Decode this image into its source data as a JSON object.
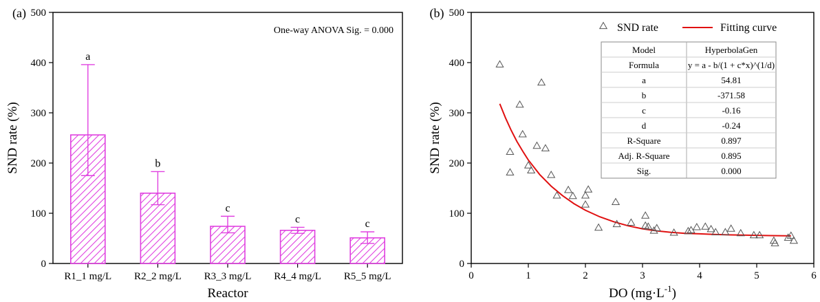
{
  "chart_data": [
    {
      "type": "bar",
      "panel_label": "(a)",
      "categories": [
        "R1_1 mg/L",
        "R2_2 mg/L",
        "R3_3 mg/L",
        "R4_4 mg/L",
        "R5_5 mg/L"
      ],
      "values": [
        256,
        140,
        74,
        66,
        51
      ],
      "error_low": [
        175,
        117,
        61,
        60,
        40
      ],
      "error_high": [
        396,
        183,
        94,
        72,
        63
      ],
      "letters": [
        "a",
        "b",
        "c",
        "c",
        "c"
      ],
      "xlabel": "Reactor",
      "ylabel": "SND rate (%)",
      "ylim": [
        0,
        500
      ],
      "yticks": [
        0,
        100,
        200,
        300,
        400,
        500
      ],
      "annotation": "One-way ANOVA Sig. = 0.000",
      "bar_color": "#e040e0",
      "hatch": "diagonal",
      "grid": false
    },
    {
      "type": "scatter",
      "panel_label": "(b)",
      "xlabel": "DO (mg·L",
      "xlabel_sup": "-1",
      "xlabel_tail": ")",
      "ylabel": "SND rate (%)",
      "xlim": [
        0,
        6
      ],
      "ylim": [
        0,
        500
      ],
      "xticks": [
        0,
        1,
        2,
        3,
        4,
        5,
        6
      ],
      "yticks": [
        0,
        100,
        200,
        300,
        400,
        500
      ],
      "grid": false,
      "legend_position": "top",
      "series": [
        {
          "name": "SND rate",
          "marker": "triangle-open",
          "color": "#555555",
          "points": [
            [
              0.5,
              396
            ],
            [
              0.68,
              222
            ],
            [
              0.68,
              181
            ],
            [
              0.85,
              316
            ],
            [
              0.9,
              257
            ],
            [
              1.23,
              360
            ],
            [
              1.0,
              195
            ],
            [
              1.05,
              185
            ],
            [
              1.15,
              234
            ],
            [
              1.3,
              229
            ],
            [
              1.4,
              176
            ],
            [
              1.5,
              135
            ],
            [
              1.7,
              146
            ],
            [
              1.78,
              134
            ],
            [
              2.0,
              135
            ],
            [
              2.0,
              117
            ],
            [
              2.05,
              147
            ],
            [
              2.23,
              71
            ],
            [
              2.53,
              122
            ],
            [
              2.55,
              78
            ],
            [
              2.8,
              81
            ],
            [
              3.05,
              95
            ],
            [
              3.05,
              75
            ],
            [
              3.1,
              73
            ],
            [
              3.2,
              65
            ],
            [
              3.25,
              70
            ],
            [
              3.55,
              61
            ],
            [
              3.8,
              64
            ],
            [
              3.85,
              66
            ],
            [
              3.95,
              72
            ],
            [
              4.1,
              73
            ],
            [
              4.2,
              68
            ],
            [
              4.28,
              62
            ],
            [
              4.45,
              62
            ],
            [
              4.55,
              69
            ],
            [
              4.72,
              60
            ],
            [
              4.95,
              56
            ],
            [
              5.05,
              56
            ],
            [
              5.3,
              45
            ],
            [
              5.32,
              40
            ],
            [
              5.55,
              51
            ],
            [
              5.6,
              55
            ],
            [
              5.65,
              45
            ]
          ]
        },
        {
          "name": "Fitting curve",
          "line": true,
          "color": "#e01010",
          "x": [
            0.5,
            0.6,
            0.7,
            0.8,
            0.9,
            1.0,
            1.2,
            1.4,
            1.6,
            1.8,
            2.0,
            2.25,
            2.5,
            2.75,
            3.0,
            3.25,
            3.5,
            3.75,
            4.0,
            4.25,
            4.5,
            4.75,
            5.0,
            5.25,
            5.5,
            5.6
          ],
          "y": [
            318,
            290,
            265,
            243,
            224,
            206,
            177,
            154,
            135,
            119,
            106,
            93,
            83,
            75,
            69,
            65,
            62,
            60,
            59,
            58,
            57,
            56.5,
            56,
            55.5,
            55.2,
            55
          ]
        }
      ],
      "fit_table": [
        [
          "Model",
          "HyperbolaGen"
        ],
        [
          "Formula",
          "y = a - b/(1 + c*x)^(1/d)"
        ],
        [
          "a",
          "54.81"
        ],
        [
          "b",
          "-371.58"
        ],
        [
          "c",
          "-0.16"
        ],
        [
          "d",
          "-0.24"
        ],
        [
          "R-Square",
          "0.897"
        ],
        [
          "Adj. R-Square",
          "0.895"
        ],
        [
          "Sig.",
          "0.000"
        ]
      ]
    }
  ]
}
